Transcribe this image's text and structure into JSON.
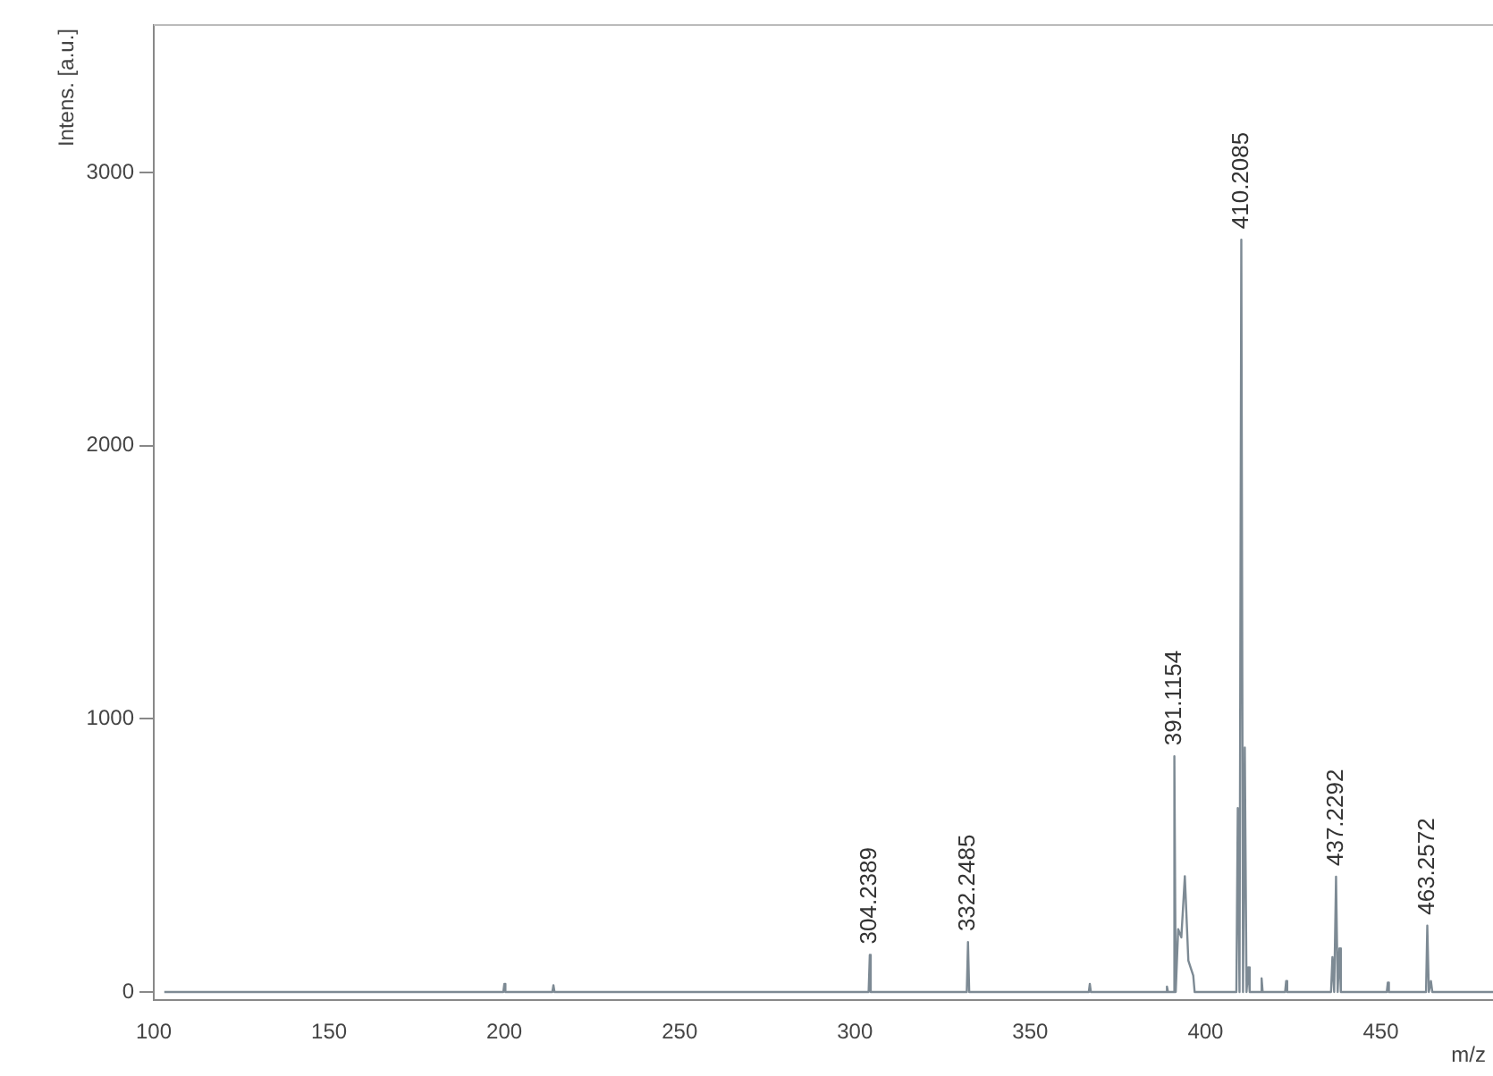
{
  "chart_data": {
    "type": "line",
    "xlabel": "m/z",
    "ylabel": "Intens. [a.u.]",
    "x": [
      103,
      199.7,
      200,
      200.3,
      213.7,
      214,
      214.3,
      303.9,
      304.2389,
      304.5,
      331.9,
      332.2485,
      332.6,
      366.7,
      367,
      367.3,
      388.7,
      389,
      389.3,
      390.8,
      391.1154,
      391.5,
      392.2,
      393.1,
      394.1,
      395.1,
      396.5,
      396.9,
      408.8,
      409.2,
      409.7,
      410.2085,
      410.7,
      411.2,
      411.7,
      412.2,
      412.6,
      415.7,
      416,
      416.3,
      422.7,
      423,
      423.3,
      435.8,
      436.2,
      436.7,
      437.2292,
      437.7,
      438.2,
      438.6,
      451.7,
      452,
      452.3,
      462.9,
      463.2572,
      463.7,
      464.3,
      464.7,
      482
    ],
    "series": [
      {
        "color": "#7d8a94",
        "values": [
          0,
          0,
          30,
          0,
          0,
          25,
          0,
          0,
          136,
          0,
          0,
          183,
          0,
          0,
          30,
          0,
          0,
          20,
          0,
          0,
          863,
          0,
          230,
          200,
          424,
          115,
          60,
          0,
          0,
          673,
          0,
          2754,
          0,
          895,
          0,
          90,
          0,
          0,
          50,
          0,
          0,
          40,
          0,
          0,
          128,
          0,
          422,
          0,
          160,
          0,
          0,
          35,
          0,
          0,
          243,
          0,
          40,
          0,
          0
        ]
      }
    ],
    "annotations": [
      {
        "text": "304.2389",
        "x": 304.2389,
        "y": 136
      },
      {
        "text": "332.2485",
        "x": 332.2485,
        "y": 183
      },
      {
        "text": "391.1154",
        "x": 391.1154,
        "y": 863
      },
      {
        "text": "410.2085",
        "x": 410.2085,
        "y": 2754
      },
      {
        "text": "437.2292",
        "x": 437.2292,
        "y": 422
      },
      {
        "text": "463.2572",
        "x": 463.2572,
        "y": 243
      }
    ],
    "xlim": [
      100,
      482
    ],
    "ylim": [
      -30,
      3540
    ],
    "xticks": [
      100,
      150,
      200,
      250,
      300,
      350,
      400,
      450
    ],
    "yticks": [
      0,
      1000,
      2000,
      3000
    ],
    "grid": false,
    "legend": false,
    "marker": "none",
    "line_style": "solid"
  }
}
